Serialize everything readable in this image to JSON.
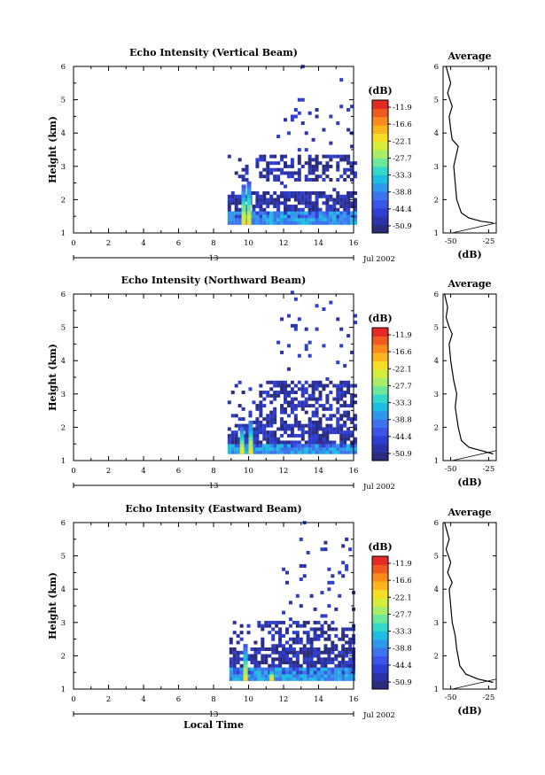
{
  "colors": {
    "scale": [
      "#2b2c7c",
      "#2b33a6",
      "#2e3fd0",
      "#3b55e8",
      "#3d74ee",
      "#2f98ea",
      "#1fbde2",
      "#33d8c8",
      "#6ee79a",
      "#a8ec6a",
      "#d6ec3c",
      "#f6de26",
      "#fbb51e",
      "#f98a1e",
      "#f05a22",
      "#e32a26"
    ]
  },
  "chart_data": [
    {
      "type": "heatmap",
      "title": "Echo Intensity (Vertical Beam)",
      "xlabel": "",
      "ylabel": "Height (km)",
      "xlim": [
        0,
        16
      ],
      "ylim": [
        1,
        6
      ],
      "x_ticks": [
        "0",
        "2",
        "4",
        "6",
        "8",
        "10",
        "12",
        "14",
        "16"
      ],
      "y_ticks": [
        "1",
        "2",
        "3",
        "4",
        "5",
        "6"
      ],
      "date_labels": {
        "day": "13",
        "month_year": "Jul 2002"
      },
      "colorbar": {
        "unit": "(dB)",
        "ticks": [
          "-11.9",
          "-16.6",
          "-22.1",
          "-27.7",
          "-33.3",
          "-38.8",
          "-44.4",
          "-50.9"
        ]
      },
      "echo_region": {
        "x_start": 8.8,
        "x_end": 16,
        "base_km": 1.25,
        "low_layer_top_km": 1.6,
        "spikes": [
          {
            "x": 9.6,
            "km": 2.4
          },
          {
            "x": 9.9,
            "km": 2.5
          }
        ],
        "mid_km": [
          2.5,
          3.3
        ],
        "sparse_top_km": 5.0
      },
      "profile": {
        "title": "Average",
        "xlabel": "(dB)",
        "x_ticks": [
          "-50",
          "-25"
        ],
        "xlim": [
          -55,
          -20
        ],
        "ylim": [
          1,
          6
        ],
        "values": [
          {
            "db": -22,
            "km": 1.3
          },
          {
            "db": -30,
            "km": 1.35
          },
          {
            "db": -38,
            "km": 1.45
          },
          {
            "db": -43,
            "km": 1.6
          },
          {
            "db": -46,
            "km": 2.0
          },
          {
            "db": -47,
            "km": 2.5
          },
          {
            "db": -48,
            "km": 3.0
          },
          {
            "db": -45,
            "km": 3.6
          },
          {
            "db": -49,
            "km": 3.8
          },
          {
            "db": -50,
            "km": 4.1
          },
          {
            "db": -51,
            "km": 4.5
          },
          {
            "db": -49,
            "km": 4.8
          },
          {
            "db": -52,
            "km": 5.2
          },
          {
            "db": -50,
            "km": 5.5
          },
          {
            "db": -53,
            "km": 6.0
          }
        ]
      }
    },
    {
      "type": "heatmap",
      "title": "Echo Intensity (Northward Beam)",
      "xlabel": "",
      "ylabel": "Height (km)",
      "xlim": [
        0,
        16
      ],
      "ylim": [
        1,
        6
      ],
      "x_ticks": [
        "0",
        "2",
        "4",
        "6",
        "8",
        "10",
        "12",
        "14",
        "16"
      ],
      "y_ticks": [
        "1",
        "2",
        "3",
        "4",
        "5",
        "6"
      ],
      "date_labels": {
        "day": "13",
        "month_year": "Jul 2002"
      },
      "colorbar": {
        "unit": "(dB)",
        "ticks": [
          "-11.9",
          "-16.6",
          "-22.1",
          "-27.7",
          "-33.3",
          "-38.8",
          "-44.4",
          "-50.9"
        ]
      },
      "echo_region": {
        "x_start": 8.8,
        "x_end": 16,
        "base_km": 1.2,
        "low_layer_top_km": 1.5,
        "spikes": [
          {
            "x": 9.5,
            "km": 2.0
          },
          {
            "x": 10.0,
            "km": 2.2
          }
        ],
        "mid_km": [
          2.0,
          3.4
        ],
        "sparse_top_km": 5.3
      },
      "profile": {
        "title": "Average",
        "xlabel": "(dB)",
        "x_ticks": [
          "-50",
          "-25"
        ],
        "xlim": [
          -55,
          -20
        ],
        "ylim": [
          1,
          6
        ],
        "values": [
          {
            "db": -22,
            "km": 1.2
          },
          {
            "db": -30,
            "km": 1.3
          },
          {
            "db": -38,
            "km": 1.4
          },
          {
            "db": -43,
            "km": 1.6
          },
          {
            "db": -45,
            "km": 2.0
          },
          {
            "db": -47,
            "km": 2.6
          },
          {
            "db": -46,
            "km": 3.0
          },
          {
            "db": -48,
            "km": 3.4
          },
          {
            "db": -50,
            "km": 4.0
          },
          {
            "db": -51,
            "km": 4.5
          },
          {
            "db": -49,
            "km": 4.8
          },
          {
            "db": -51,
            "km": 5.0
          },
          {
            "db": -53,
            "km": 5.3
          },
          {
            "db": -52,
            "km": 5.6
          },
          {
            "db": -54,
            "km": 6.0
          }
        ]
      }
    },
    {
      "type": "heatmap",
      "title": "Echo Intensity (Eastward Beam)",
      "xlabel": "Local Time",
      "ylabel": "Height (km)",
      "xlim": [
        0,
        16
      ],
      "ylim": [
        1,
        6
      ],
      "x_ticks": [
        "0",
        "2",
        "4",
        "6",
        "8",
        "10",
        "12",
        "14",
        "16"
      ],
      "y_ticks": [
        "1",
        "2",
        "3",
        "4",
        "5",
        "6"
      ],
      "date_labels": {
        "day": "13",
        "month_year": "Jul 2002"
      },
      "colorbar": {
        "unit": "(dB)",
        "ticks": [
          "-11.9",
          "-16.6",
          "-22.1",
          "-27.7",
          "-33.3",
          "-38.8",
          "-44.4",
          "-50.9"
        ]
      },
      "echo_region": {
        "x_start": 8.9,
        "x_end": 16,
        "base_km": 1.25,
        "low_layer_top_km": 1.6,
        "spikes": [
          {
            "x": 9.7,
            "km": 2.3
          },
          {
            "x": 11.2,
            "km": 1.6
          }
        ],
        "mid_km": [
          1.8,
          3.0
        ],
        "sparse_top_km": 5.5
      },
      "profile": {
        "title": "Average",
        "xlabel": "(dB)",
        "x_ticks": [
          "-50",
          "-25"
        ],
        "xlim": [
          -55,
          -20
        ],
        "ylim": [
          1,
          6
        ],
        "values": [
          {
            "db": -22,
            "km": 1.2
          },
          {
            "db": -32,
            "km": 1.3
          },
          {
            "db": -40,
            "km": 1.45
          },
          {
            "db": -44,
            "km": 1.7
          },
          {
            "db": -46,
            "km": 2.2
          },
          {
            "db": -47,
            "km": 2.6
          },
          {
            "db": -49,
            "km": 3.0
          },
          {
            "db": -50,
            "km": 3.5
          },
          {
            "db": -51,
            "km": 4.0
          },
          {
            "db": -49,
            "km": 4.2
          },
          {
            "db": -52,
            "km": 4.5
          },
          {
            "db": -50,
            "km": 4.8
          },
          {
            "db": -53,
            "km": 5.2
          },
          {
            "db": -51,
            "km": 5.5
          },
          {
            "db": -54,
            "km": 6.0
          }
        ]
      }
    }
  ]
}
